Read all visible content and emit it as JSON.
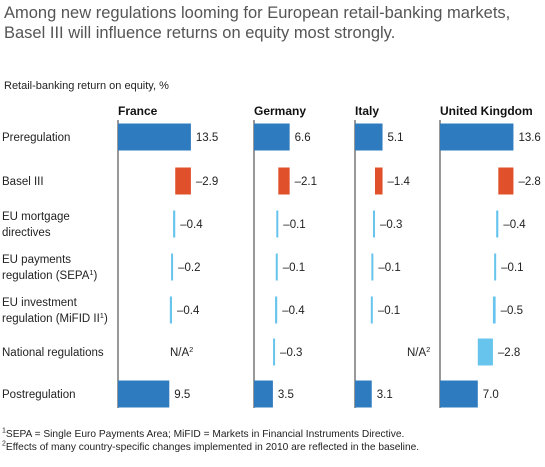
{
  "header": {
    "title": "Among new regulations looming for European retail-banking markets, Basel III will influence returns on equity most strongly.",
    "subtitle": "Retail-banking return on equity, %"
  },
  "footnotes": {
    "note1_text": "SEPA = Single Euro Payments Area; MiFID = Markets in Financial Instruments Directive.",
    "note2_text": "Effects of many country-specific changes implemented in 2010 are reflected in the baseline."
  },
  "colors": {
    "total": "#2f7bbf",
    "basel": "#e0502a",
    "other": "#67c4ec",
    "axis": "#333333"
  },
  "chart_data": {
    "type": "bar",
    "title": "Retail-banking return on equity, %",
    "rows": [
      {
        "label": "Preregulation",
        "kind": "total"
      },
      {
        "label": "Basel III",
        "kind": "basel"
      },
      {
        "label": "EU mortgage directives",
        "kind": "other"
      },
      {
        "label": "EU payments regulation (SEPA1)",
        "kind": "other"
      },
      {
        "label": "EU investment regulation (MiFID II1)",
        "kind": "other"
      },
      {
        "label": "National regulations",
        "kind": "other"
      },
      {
        "label": "Postregulation",
        "kind": "total"
      }
    ],
    "series": [
      {
        "name": "France",
        "values": [
          13.5,
          -2.9,
          -0.4,
          -0.2,
          -0.4,
          null,
          9.5
        ]
      },
      {
        "name": "Germany",
        "values": [
          6.6,
          -2.1,
          -0.1,
          -0.1,
          -0.4,
          -0.3,
          3.5
        ]
      },
      {
        "name": "Italy",
        "values": [
          5.1,
          -1.4,
          -0.3,
          -0.1,
          -0.1,
          null,
          3.1
        ]
      },
      {
        "name": "United Kingdom",
        "values": [
          13.6,
          -2.8,
          -0.4,
          -0.1,
          -0.5,
          -2.8,
          7.0
        ]
      }
    ],
    "value_labels": [
      [
        "13.5",
        "–2.9",
        "–0.4",
        "–0.2",
        "–0.4",
        "N/A2",
        "9.5"
      ],
      [
        "6.6",
        "–2.1",
        "–0.1",
        "–0.1",
        "–0.4",
        "–0.3",
        "3.5"
      ],
      [
        "5.1",
        "–1.4",
        "–0.3",
        "–0.1",
        "–0.1",
        "N/A2",
        "3.1"
      ],
      [
        "13.6",
        "–2.8",
        "–0.4",
        "–0.1",
        "–0.5",
        "–2.8",
        "7.0"
      ]
    ]
  }
}
